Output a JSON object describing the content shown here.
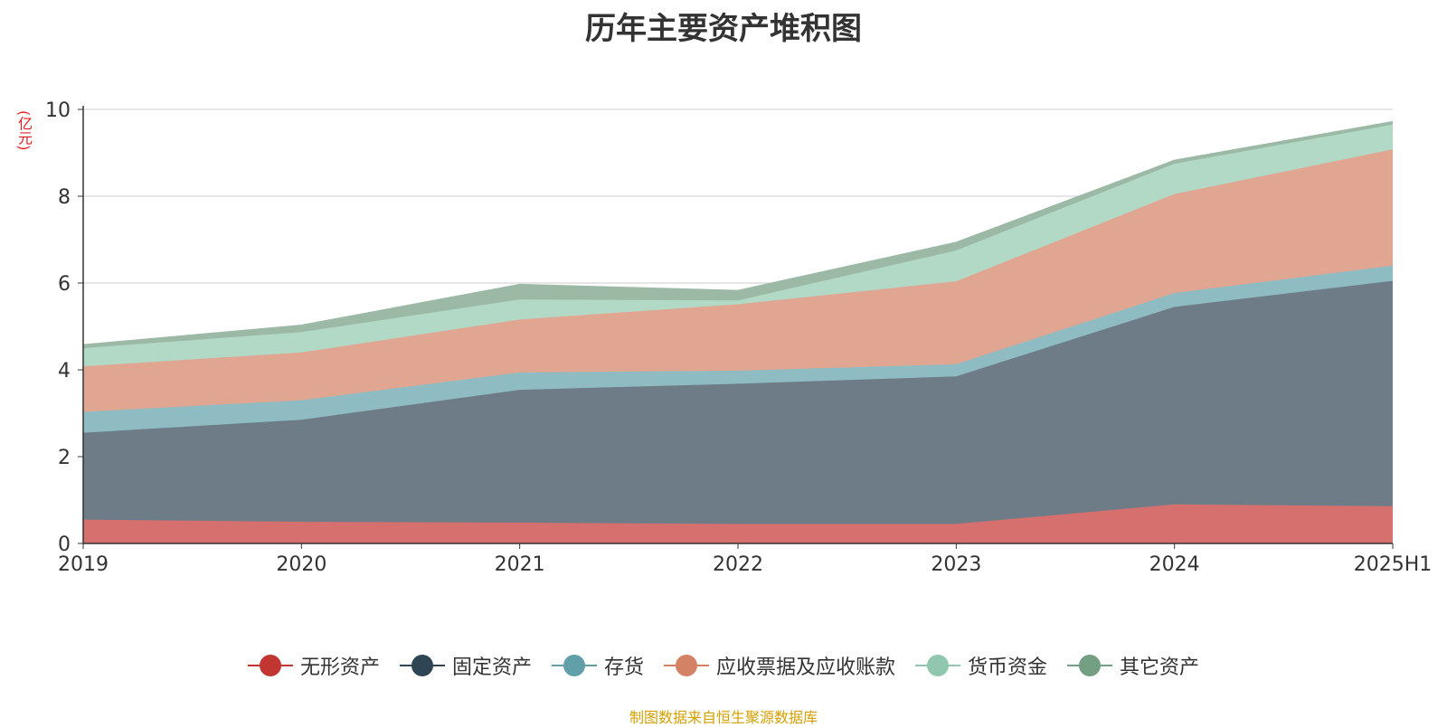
{
  "chart_data": {
    "type": "area",
    "stacked": true,
    "title": "历年主要资产堆积图",
    "unit_label": "(亿元)",
    "source_note": "制图数据来自恒生聚源数据库",
    "categories": [
      "2019",
      "2020",
      "2021",
      "2022",
      "2023",
      "2024",
      "2025H1"
    ],
    "ylim": [
      0,
      10
    ],
    "yticks": [
      0,
      2,
      4,
      6,
      8,
      10
    ],
    "grid": true,
    "legend_position": "bottom",
    "series": [
      {
        "name": "无形资产",
        "color": "#c23531",
        "fill": "#d5706f",
        "values": [
          0.55,
          0.5,
          0.48,
          0.45,
          0.45,
          0.9,
          0.86
        ]
      },
      {
        "name": "固定资产",
        "color": "#2f4554",
        "fill": "#6e7c87",
        "values": [
          2.0,
          2.35,
          3.06,
          3.23,
          3.4,
          4.55,
          5.19
        ]
      },
      {
        "name": "存货",
        "color": "#61a0a8",
        "fill": "#8fbcc2",
        "values": [
          0.48,
          0.45,
          0.4,
          0.3,
          0.28,
          0.32,
          0.35
        ]
      },
      {
        "name": "应收票据及应收账款",
        "color": "#d48265",
        "fill": "#e0a692",
        "values": [
          1.05,
          1.1,
          1.22,
          1.53,
          1.91,
          2.28,
          2.68
        ]
      },
      {
        "name": "货币资金",
        "color": "#91c7ae",
        "fill": "#b2d8c6",
        "values": [
          0.42,
          0.47,
          0.46,
          0.09,
          0.71,
          0.7,
          0.57
        ]
      },
      {
        "name": "其它资产",
        "color": "#749f83",
        "fill": "#9cb9a6",
        "values": [
          0.07,
          0.15,
          0.34,
          0.22,
          0.18,
          0.07,
          0.06
        ]
      }
    ]
  }
}
